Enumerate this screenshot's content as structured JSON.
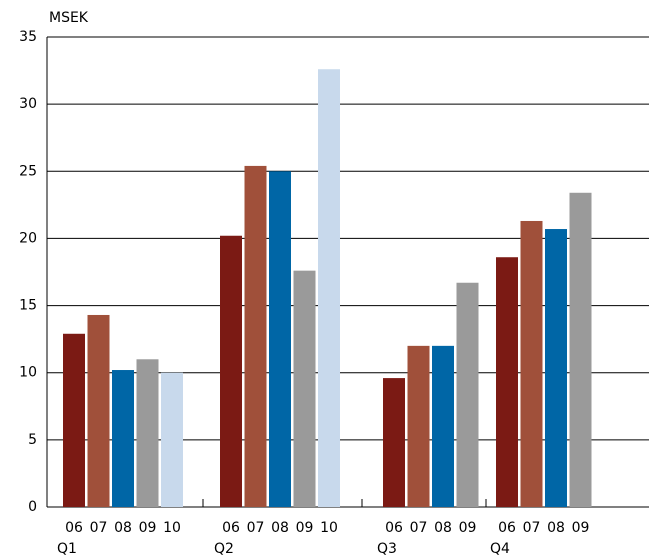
{
  "chart_data": {
    "type": "bar",
    "y_label": "MSEK",
    "categories": [
      "Q1",
      "Q2",
      "Q3",
      "Q4"
    ],
    "series": [
      {
        "name": "06",
        "color": "#7b1a14",
        "values": [
          12.9,
          20.2,
          9.6,
          18.6
        ]
      },
      {
        "name": "07",
        "color": "#a0503a",
        "values": [
          14.3,
          25.4,
          12.0,
          21.3
        ]
      },
      {
        "name": "08",
        "color": "#0066a6",
        "values": [
          10.2,
          25.0,
          12.0,
          20.7
        ]
      },
      {
        "name": "09",
        "color": "#9a9a9a",
        "values": [
          11.0,
          17.6,
          16.7,
          23.4
        ]
      },
      {
        "name": "10",
        "color": "#c8d9ec",
        "values": [
          10.0,
          32.6,
          null,
          null
        ]
      }
    ],
    "ylim": [
      0,
      35
    ],
    "yticks": [
      0,
      5,
      10,
      15,
      20,
      25,
      30,
      35
    ],
    "grid": true
  }
}
